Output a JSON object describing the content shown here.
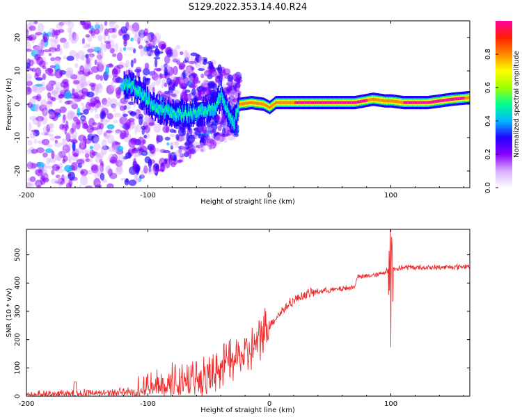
{
  "title": "S129.2022.353.14.40.R24",
  "colors": {
    "snr_line": "#ee2a2a",
    "axis": "#000000",
    "background": "#ffffff"
  },
  "chart_data": [
    {
      "type": "heatmap",
      "xlabel": "Height of straight line (km)",
      "ylabel": "Frequency (Hz)",
      "xlim": [
        -200,
        165
      ],
      "ylim": [
        -25,
        25
      ],
      "xticks": [
        -200,
        -100,
        0,
        100
      ],
      "yticks": [
        -20,
        -10,
        0,
        10,
        20
      ],
      "ridge": {
        "x": [
          -115,
          -105,
          -95,
          -85,
          -75,
          -65,
          -55,
          -45,
          -40,
          -35,
          -30,
          -25,
          -15,
          -5,
          0,
          5,
          15,
          30,
          50,
          70,
          85,
          95,
          100,
          110,
          130,
          150,
          165
        ],
        "freq": [
          6,
          3,
          -1,
          -2,
          -3,
          -3,
          -2,
          -1,
          3,
          -2,
          -6,
          0,
          0.5,
          0,
          -1,
          0.5,
          0.5,
          0.5,
          0.5,
          0.5,
          1.5,
          1,
          1,
          0.5,
          0.5,
          1.5,
          2
        ]
      },
      "colorbar": {
        "label": "Normalized spectral amplitude",
        "range": [
          0,
          1
        ],
        "ticks": [
          "0.0",
          "0.2",
          "0.4",
          "0.6",
          "0.8"
        ],
        "scale": [
          "#ffffff",
          "#d8b0ff",
          "#8800ff",
          "#2200ff",
          "#00b8ff",
          "#00ff90",
          "#a0ff00",
          "#ffff00",
          "#ff8800",
          "#ff2000",
          "#ff00a0"
        ]
      }
    },
    {
      "type": "line",
      "xlabel": "Height of straight line (km)",
      "ylabel": "SNR (10 * v/v)",
      "xlim": [
        -200,
        165
      ],
      "ylim": [
        0,
        590
      ],
      "xticks": [
        -200,
        -100,
        0,
        100
      ],
      "yticks": [
        0,
        100,
        200,
        300,
        400,
        500
      ],
      "series": [
        {
          "x": [
            -200,
            -180,
            -160,
            -140,
            -120,
            -110,
            -100,
            -90,
            -80,
            -70,
            -60,
            -50,
            -40,
            -30,
            -25,
            -20,
            -15,
            -10,
            -5,
            0,
            10,
            20,
            30,
            40,
            50,
            60,
            70,
            72,
            80,
            90,
            95,
            98,
            100,
            102,
            105,
            110,
            120,
            140,
            165
          ],
          "values": [
            10,
            12,
            15,
            15,
            20,
            25,
            45,
            55,
            65,
            80,
            95,
            100,
            110,
            130,
            140,
            150,
            160,
            185,
            230,
            250,
            300,
            340,
            360,
            370,
            375,
            380,
            385,
            420,
            425,
            430,
            440,
            445,
            440,
            450,
            450,
            455,
            455,
            455,
            460
          ]
        }
      ]
    }
  ]
}
